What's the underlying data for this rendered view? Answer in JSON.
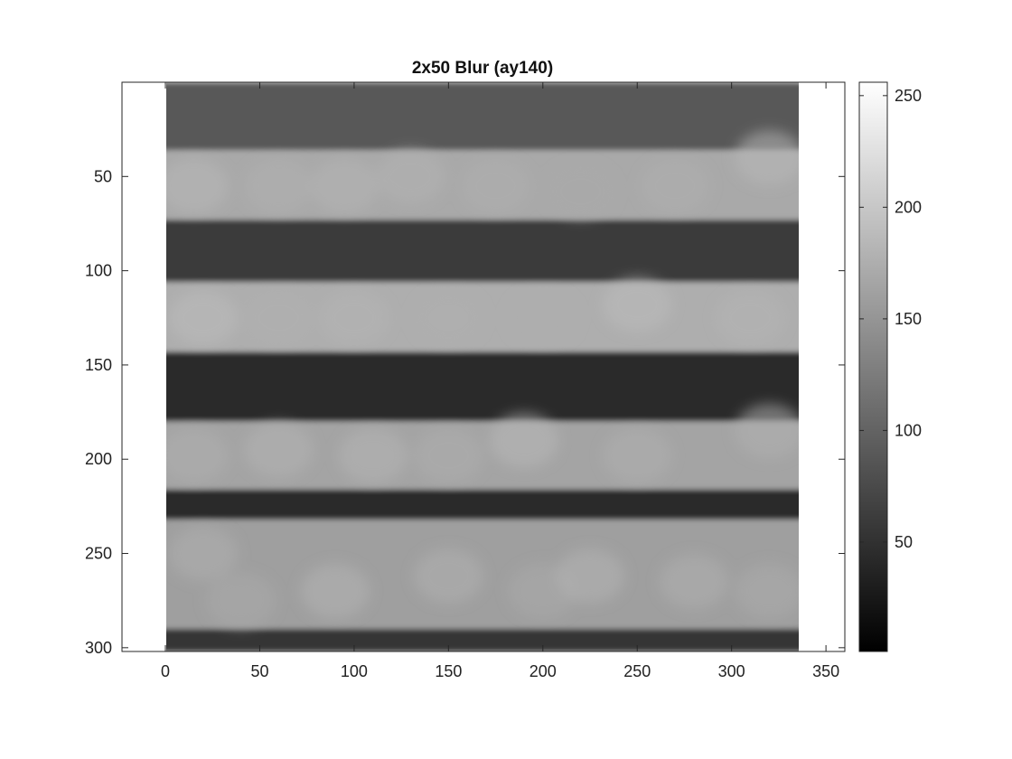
{
  "chart_data": {
    "type": "heatmap",
    "title": "2x50 Blur (ay140)",
    "xlabel": "",
    "ylabel": "",
    "xlim": [
      -23,
      360
    ],
    "ylim": [
      302,
      0
    ],
    "image_extent_x": [
      0,
      336
    ],
    "image_extent_y": [
      0,
      302
    ],
    "x_ticks": [
      0,
      50,
      100,
      150,
      200,
      250,
      300,
      350
    ],
    "y_ticks": [
      50,
      100,
      150,
      200,
      250,
      300
    ],
    "colormap": "gray",
    "clim": [
      1,
      256
    ],
    "colorbar_ticks": [
      50,
      100,
      150,
      200,
      250
    ],
    "grid": false,
    "bands": [
      {
        "y_start": 0,
        "y_end": 36,
        "value": 90
      },
      {
        "y_start": 36,
        "y_end": 73,
        "value": 170
      },
      {
        "y_start": 73,
        "y_end": 106,
        "value": 60
      },
      {
        "y_start": 106,
        "y_end": 143,
        "value": 175
      },
      {
        "y_start": 143,
        "y_end": 180,
        "value": 45
      },
      {
        "y_start": 180,
        "y_end": 216,
        "value": 165
      },
      {
        "y_start": 216,
        "y_end": 232,
        "value": 45
      },
      {
        "y_start": 232,
        "y_end": 290,
        "value": 160
      },
      {
        "y_start": 290,
        "y_end": 302,
        "value": 55
      }
    ],
    "blobs": [
      {
        "x": 15,
        "y": 55,
        "value": 185
      },
      {
        "x": 60,
        "y": 55,
        "value": 178
      },
      {
        "x": 95,
        "y": 55,
        "value": 182
      },
      {
        "x": 130,
        "y": 50,
        "value": 180
      },
      {
        "x": 175,
        "y": 55,
        "value": 176
      },
      {
        "x": 220,
        "y": 58,
        "value": 170
      },
      {
        "x": 270,
        "y": 55,
        "value": 175
      },
      {
        "x": 320,
        "y": 40,
        "value": 185
      },
      {
        "x": 20,
        "y": 125,
        "value": 188
      },
      {
        "x": 60,
        "y": 125,
        "value": 178
      },
      {
        "x": 100,
        "y": 125,
        "value": 182
      },
      {
        "x": 150,
        "y": 125,
        "value": 176
      },
      {
        "x": 200,
        "y": 125,
        "value": 174
      },
      {
        "x": 250,
        "y": 118,
        "value": 188
      },
      {
        "x": 310,
        "y": 125,
        "value": 182
      },
      {
        "x": 15,
        "y": 198,
        "value": 176
      },
      {
        "x": 60,
        "y": 195,
        "value": 180
      },
      {
        "x": 110,
        "y": 198,
        "value": 182
      },
      {
        "x": 150,
        "y": 198,
        "value": 174
      },
      {
        "x": 190,
        "y": 190,
        "value": 185
      },
      {
        "x": 250,
        "y": 198,
        "value": 176
      },
      {
        "x": 320,
        "y": 185,
        "value": 178
      },
      {
        "x": 20,
        "y": 250,
        "value": 175
      },
      {
        "x": 40,
        "y": 275,
        "value": 170
      },
      {
        "x": 90,
        "y": 270,
        "value": 180
      },
      {
        "x": 150,
        "y": 262,
        "value": 178
      },
      {
        "x": 200,
        "y": 270,
        "value": 170
      },
      {
        "x": 225,
        "y": 262,
        "value": 180
      },
      {
        "x": 280,
        "y": 265,
        "value": 176
      },
      {
        "x": 320,
        "y": 270,
        "value": 172
      }
    ]
  }
}
